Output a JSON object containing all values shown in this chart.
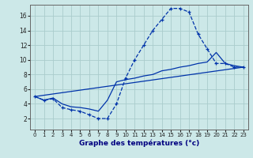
{
  "xlabel": "Graphe des températures (°c)",
  "bg_color": "#cce8e8",
  "grid_color": "#aacccc",
  "line_color": "#0033aa",
  "xlim": [
    -0.5,
    23.5
  ],
  "ylim": [
    0.5,
    17.5
  ],
  "xticks": [
    0,
    1,
    2,
    3,
    4,
    5,
    6,
    7,
    8,
    9,
    10,
    11,
    12,
    13,
    14,
    15,
    16,
    17,
    18,
    19,
    20,
    21,
    22,
    23
  ],
  "yticks": [
    2,
    4,
    6,
    8,
    10,
    12,
    14,
    16
  ],
  "curve1_x": [
    0,
    1,
    2,
    3,
    4,
    5,
    6,
    7,
    8,
    9,
    10,
    11,
    12,
    13,
    14,
    15,
    16,
    17,
    18,
    19,
    20,
    21,
    22,
    23
  ],
  "curve1_y": [
    5.0,
    4.5,
    4.7,
    3.5,
    3.2,
    3.0,
    2.5,
    2.0,
    2.0,
    4.0,
    7.5,
    10.0,
    12.0,
    14.0,
    15.5,
    17.0,
    17.0,
    16.5,
    13.5,
    11.5,
    9.5,
    9.5,
    9.0,
    9.0
  ],
  "curve2_x": [
    0,
    1,
    2,
    3,
    4,
    5,
    6,
    7,
    8,
    9,
    10,
    11,
    12,
    13,
    14,
    15,
    16,
    17,
    18,
    19,
    20,
    21,
    22,
    23
  ],
  "curve2_y": [
    5.0,
    4.5,
    4.8,
    4.0,
    3.6,
    3.5,
    3.3,
    3.0,
    4.5,
    7.0,
    7.3,
    7.5,
    7.8,
    8.0,
    8.5,
    8.7,
    9.0,
    9.2,
    9.5,
    9.7,
    11.0,
    9.5,
    9.2,
    9.0
  ],
  "curve3_x": [
    0,
    23
  ],
  "curve3_y": [
    5.0,
    9.0
  ]
}
